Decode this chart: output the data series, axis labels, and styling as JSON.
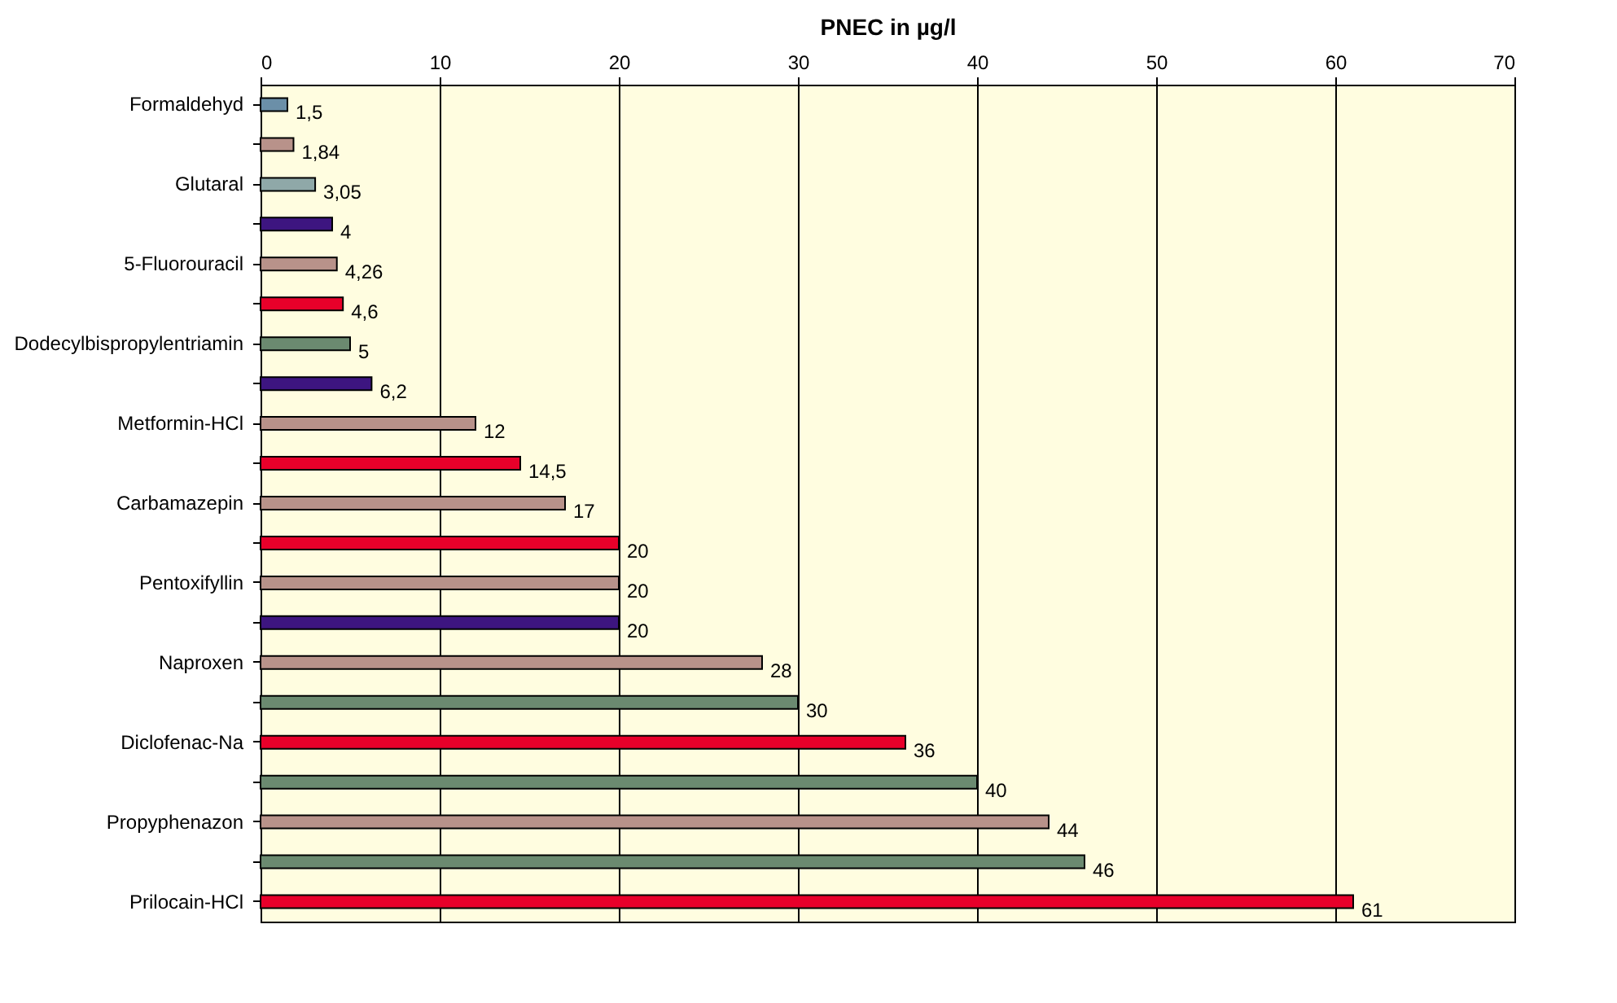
{
  "chart_data": {
    "type": "bar",
    "orientation": "horizontal",
    "xlabel": "PNEC in µg/l",
    "categories": [
      "Formaldehyd",
      null,
      "Glutaral",
      null,
      "5-Fluorouracil",
      null,
      "Dodecylbispropylentriamin",
      null,
      "Metformin-HCl",
      null,
      "Carbamazepin",
      null,
      "Pentoxifyllin",
      null,
      "Naproxen",
      null,
      "Diclofenac-Na",
      null,
      "Propyphenazon",
      null,
      "Prilocain-HCl"
    ],
    "values": [
      1.5,
      1.84,
      3.05,
      4,
      4.26,
      4.6,
      5,
      6.2,
      12,
      14.5,
      17,
      20,
      20,
      20,
      28,
      30,
      36,
      40,
      44,
      46,
      61
    ],
    "value_labels": [
      "1,5",
      "1,84",
      "3,05",
      "4",
      "4,26",
      "4,6",
      "5",
      "6,2",
      "12",
      "14,5",
      "17",
      "20",
      "20",
      "20",
      "28",
      "30",
      "36",
      "40",
      "44",
      "46",
      "61"
    ],
    "colors": [
      "#6b8fa8",
      "#b8928a",
      "#8fa8a8",
      "#3d1580",
      "#b8928a",
      "#e8002a",
      "#6b8a70",
      "#3d1580",
      "#b8928a",
      "#e8002a",
      "#b8928a",
      "#e8002a",
      "#b8928a",
      "#3d1580",
      "#b8928a",
      "#6b8a70",
      "#e8002a",
      "#6b8a70",
      "#b8928a",
      "#6b8a70",
      "#e8002a"
    ],
    "xlim": [
      0,
      70
    ],
    "xticks": [
      0,
      10,
      20,
      30,
      40,
      50,
      60,
      70
    ],
    "grid": "x"
  }
}
